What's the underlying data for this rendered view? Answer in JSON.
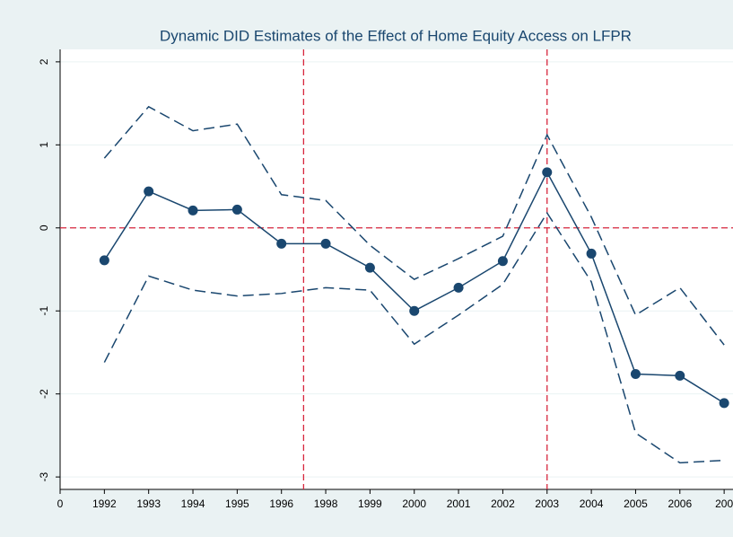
{
  "chart_data": {
    "type": "line",
    "title": "Dynamic DID Estimates of the Effect of Home Equity Access on LFPR",
    "x": [
      1,
      2,
      3,
      4,
      5,
      6,
      7,
      8,
      9,
      10,
      11,
      12,
      13,
      14,
      15
    ],
    "series": [
      {
        "color": "#1a476f",
        "style": "solid",
        "marker": true,
        "values": [
          -0.39,
          0.44,
          0.21,
          0.22,
          -0.19,
          -0.19,
          -0.48,
          -1.0,
          -0.72,
          -0.4,
          0.67,
          -0.31,
          -1.76,
          -1.78,
          -2.11
        ]
      },
      {
        "color": "#1a476f",
        "style": "dashed",
        "marker": false,
        "values": [
          0.84,
          1.46,
          1.17,
          1.25,
          0.4,
          0.33,
          -0.21,
          -0.62,
          -0.37,
          -0.1,
          1.12,
          0.13,
          -1.05,
          -0.72,
          -1.41
        ]
      },
      {
        "color": "#1a476f",
        "style": "dashed",
        "marker": false,
        "values": [
          -1.62,
          -0.58,
          -0.75,
          -0.82,
          -0.79,
          -0.72,
          -0.75,
          -1.4,
          -1.05,
          -0.68,
          0.18,
          -0.65,
          -2.47,
          -2.83,
          -2.8
        ]
      }
    ],
    "xlim": [
      0,
      15.2
    ],
    "xticks": [
      0,
      {
        "value": 1,
        "label": "1992"
      },
      {
        "value": 2,
        "label": "1993"
      },
      {
        "value": 3,
        "label": "1994"
      },
      {
        "value": 4,
        "label": "1995"
      },
      {
        "value": 5,
        "label": "1996"
      },
      {
        "value": 6,
        "label": "1998"
      },
      {
        "value": 7,
        "label": "1999"
      },
      {
        "value": 8,
        "label": "2000"
      },
      {
        "value": 9,
        "label": "2001"
      },
      {
        "value": 10,
        "label": "2002"
      },
      {
        "value": 11,
        "label": "2003"
      },
      {
        "value": 12,
        "label": "2004"
      },
      {
        "value": 13,
        "label": "2005"
      },
      {
        "value": 14,
        "label": "2006"
      },
      {
        "value": 15,
        "label": "200"
      }
    ],
    "ylim": [
      -3.15,
      2.15
    ],
    "yticks": [
      -3,
      -2,
      -1,
      0,
      1,
      2
    ],
    "grid": true,
    "reference_lines": {
      "color": "#d7263d",
      "x": [
        5.5,
        11
      ],
      "y": [
        0
      ]
    }
  }
}
